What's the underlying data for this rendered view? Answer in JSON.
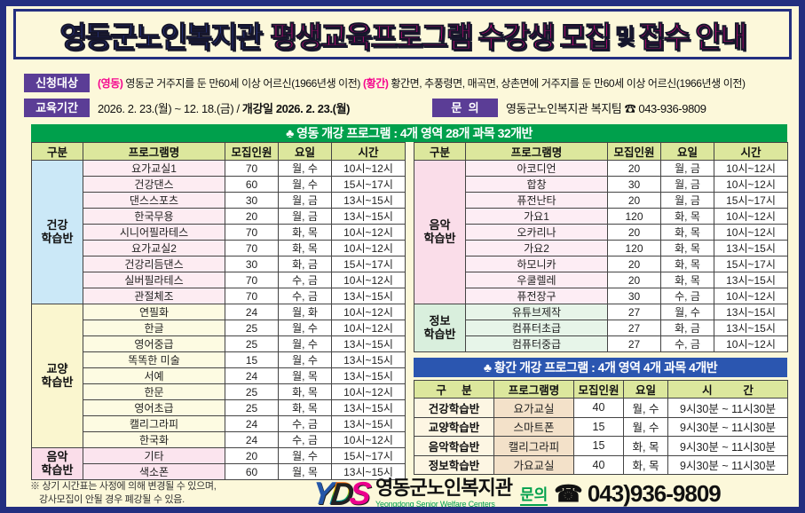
{
  "title": {
    "part_blue": "영동군노인복지관",
    "part_pink1": "평생교육프로그램 수강생 모집",
    "part_dark": "및",
    "part_pink2": "접수 안내"
  },
  "info": {
    "apply_label": "신청대상",
    "apply_tag1": "(영동)",
    "apply_text1": " 영동군 거주지를 둔 만60세 이상 어르신(1966년생 이전) ",
    "apply_tag2": "(황간)",
    "apply_text2": " 황간면, 추풍령면, 매곡면, 상촌면에 거주지를 둔 만60세 이상 어르신(1966년생 이전)",
    "period_label": "교육기간",
    "period_text": "2026. 2. 23.(월) ~ 12. 18.(금) / ",
    "period_bold": "개강일 2026. 2. 23.(월)",
    "contact_label": "문  의",
    "contact_text": "영동군노인복지관 복지팀 ☎ 043-936-9809"
  },
  "yeongdong": {
    "header": "♣ 영동 개강 프로그램 : 4개 영역 28개 과목 32개반",
    "columns": [
      "구분",
      "프로그램명",
      "모집인원",
      "요일",
      "시간"
    ],
    "left_sections": [
      {
        "label": "건강\n학습반",
        "cat_bg": "#cbe8f7",
        "row_bg": "#fdecf2",
        "rows": [
          [
            "요가교실1",
            "70",
            "월, 수",
            "10시~12시"
          ],
          [
            "건강댄스",
            "60",
            "월, 수",
            "15시~17시"
          ],
          [
            "댄스스포츠",
            "30",
            "월, 금",
            "13시~15시"
          ],
          [
            "한국무용",
            "20",
            "월, 금",
            "13시~15시"
          ],
          [
            "시니어필라테스",
            "70",
            "화, 목",
            "10시~12시"
          ],
          [
            "요가교실2",
            "70",
            "화, 목",
            "10시~12시"
          ],
          [
            "건강리듬댄스",
            "30",
            "화, 금",
            "15시~17시"
          ],
          [
            "실버필라테스",
            "70",
            "수, 금",
            "10시~12시"
          ],
          [
            "관절체조",
            "70",
            "수, 금",
            "13시~15시"
          ]
        ]
      },
      {
        "label": "교양\n학습반",
        "cat_bg": "#faf6cf",
        "row_bg": "#fdfbe2",
        "rows": [
          [
            "연필화",
            "24",
            "월, 화",
            "10시~12시"
          ],
          [
            "한글",
            "25",
            "월, 수",
            "10시~12시"
          ],
          [
            "영어중급",
            "25",
            "월, 수",
            "13시~15시"
          ],
          [
            "똑똑한 미술",
            "15",
            "월, 수",
            "13시~15시"
          ],
          [
            "서예",
            "24",
            "월, 목",
            "13시~15시"
          ],
          [
            "한문",
            "25",
            "화, 목",
            "10시~12시"
          ],
          [
            "영어초급",
            "25",
            "화, 목",
            "13시~15시"
          ],
          [
            "캘리그라피",
            "24",
            "수, 금",
            "13시~15시"
          ],
          [
            "한국화",
            "24",
            "수, 금",
            "10시~12시"
          ]
        ]
      },
      {
        "label": "음악\n학습반",
        "cat_bg": "#fadde9",
        "row_bg": "#fbe4ee",
        "rows": [
          [
            "기타",
            "20",
            "월, 수",
            "15시~17시"
          ],
          [
            "색소폰",
            "60",
            "월, 목",
            "13시~15시"
          ]
        ]
      }
    ],
    "right_sections": [
      {
        "label": "음악\n학습반",
        "cat_bg": "#fadde9",
        "row_bg": "#fdedf4",
        "rows": [
          [
            "아코디언",
            "20",
            "월, 금",
            "10시~12시"
          ],
          [
            "합창",
            "30",
            "월, 금",
            "10시~12시"
          ],
          [
            "퓨전난타",
            "20",
            "월, 금",
            "15시~17시"
          ],
          [
            "가요1",
            "120",
            "화, 목",
            "10시~12시"
          ],
          [
            "오카리나",
            "20",
            "화, 목",
            "10시~12시"
          ],
          [
            "가요2",
            "120",
            "화, 목",
            "13시~15시"
          ],
          [
            "하모니카",
            "20",
            "화, 목",
            "15시~17시"
          ],
          [
            "우쿨렐레",
            "20",
            "화, 목",
            "13시~15시"
          ],
          [
            "퓨전장구",
            "30",
            "수, 금",
            "10시~12시"
          ]
        ]
      },
      {
        "label": "정보\n학습반",
        "cat_bg": "#d9efdd",
        "row_bg": "#e7f5e9",
        "rows": [
          [
            "유튜브제작",
            "27",
            "월, 수",
            "13시~15시"
          ],
          [
            "컴퓨터초급",
            "27",
            "화, 금",
            "13시~15시"
          ],
          [
            "컴퓨터중급",
            "27",
            "수, 금",
            "10시~12시"
          ]
        ]
      }
    ]
  },
  "hwanggan": {
    "header": "♣ 황간 개강 프로그램 : 4개 영역 4개 과목 4개반",
    "columns": [
      "구     분",
      "프로그램명",
      "모집인원",
      "요일",
      "시          간"
    ],
    "rows": [
      [
        "건강학습반",
        "요가교실",
        "40",
        "월, 수",
        "9시30분 ~ 11시30분"
      ],
      [
        "교양학습반",
        "스마트폰",
        "15",
        "월, 수",
        "9시30분 ~ 11시30분"
      ],
      [
        "음악학습반",
        "캘리그라피",
        "15",
        "화, 목",
        "9시30분 ~ 11시30분"
      ],
      [
        "정보학습반",
        "가요교실",
        "40",
        "화, 목",
        "9시30분 ~ 11시30분"
      ]
    ]
  },
  "footer": {
    "note_line1": "※ 상기 시간표는 사정에 의해 변경될 수 있으며,",
    "note_line2": "강사모집이 안될 경우 폐강될 수 있음.",
    "logo_y": "Y",
    "logo_d": "D",
    "logo_s": "S",
    "org_name": "영동군노인복지관",
    "org_name_en": "Yeongdong Senior Welfare Centers",
    "contact_label": "문의",
    "contact_phone": "☎ 043)936-9809"
  },
  "colors": {
    "frame_navy": "#232f80",
    "page_cream": "#fcf8da",
    "title_blue": "#2b3a94",
    "accent_magenta": "#f5058e",
    "label_purple": "#5b3d96",
    "bar_green": "#00a04c",
    "bar_blue": "#2b56b0",
    "table_header": "#dce79d"
  }
}
